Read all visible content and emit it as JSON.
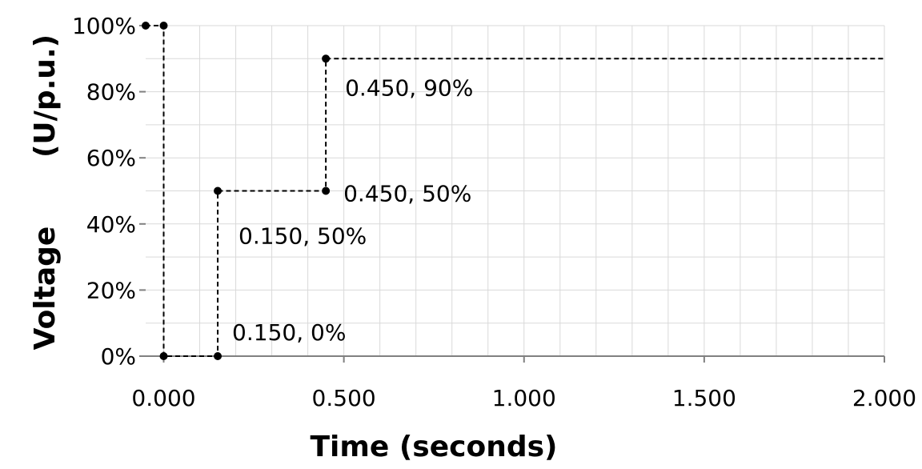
{
  "chart_data": {
    "type": "scatter",
    "title": "",
    "xlabel": "Time (seconds)",
    "ylabel_parts": [
      "Voltage",
      "(U/p.u.)"
    ],
    "xlim": [
      -0.05,
      2.0
    ],
    "ylim": [
      0,
      100
    ],
    "x_ticks": [
      0,
      0.5,
      1.0,
      1.5,
      2.0
    ],
    "x_tick_labels": [
      "0.000",
      "0.500",
      "1.000",
      "1.500",
      "2.000"
    ],
    "y_ticks": [
      0,
      20,
      40,
      60,
      80,
      100
    ],
    "y_tick_labels": [
      "0%",
      "20%",
      "40%",
      "60%",
      "80%",
      "100%"
    ],
    "grid": true,
    "legend": "none",
    "series": [
      {
        "style": "dashed-step",
        "points": [
          {
            "x": -0.05,
            "y": 100,
            "label": ""
          },
          {
            "x": 0.0,
            "y": 100,
            "label": ""
          },
          {
            "x": 0.0,
            "y": 0,
            "label": ""
          },
          {
            "x": 0.15,
            "y": 0,
            "label": "0.150, 0%"
          },
          {
            "x": 0.15,
            "y": 50,
            "label": "0.150, 50%"
          },
          {
            "x": 0.45,
            "y": 50,
            "label": "0.450, 50%"
          },
          {
            "x": 0.45,
            "y": 90,
            "label": "0.450, 90%"
          }
        ],
        "line_end_x": 2.0,
        "line_end_y": 90
      }
    ],
    "colors": {
      "line": "#000000",
      "grid": "#d9d9d9",
      "axis": "#808080"
    }
  }
}
